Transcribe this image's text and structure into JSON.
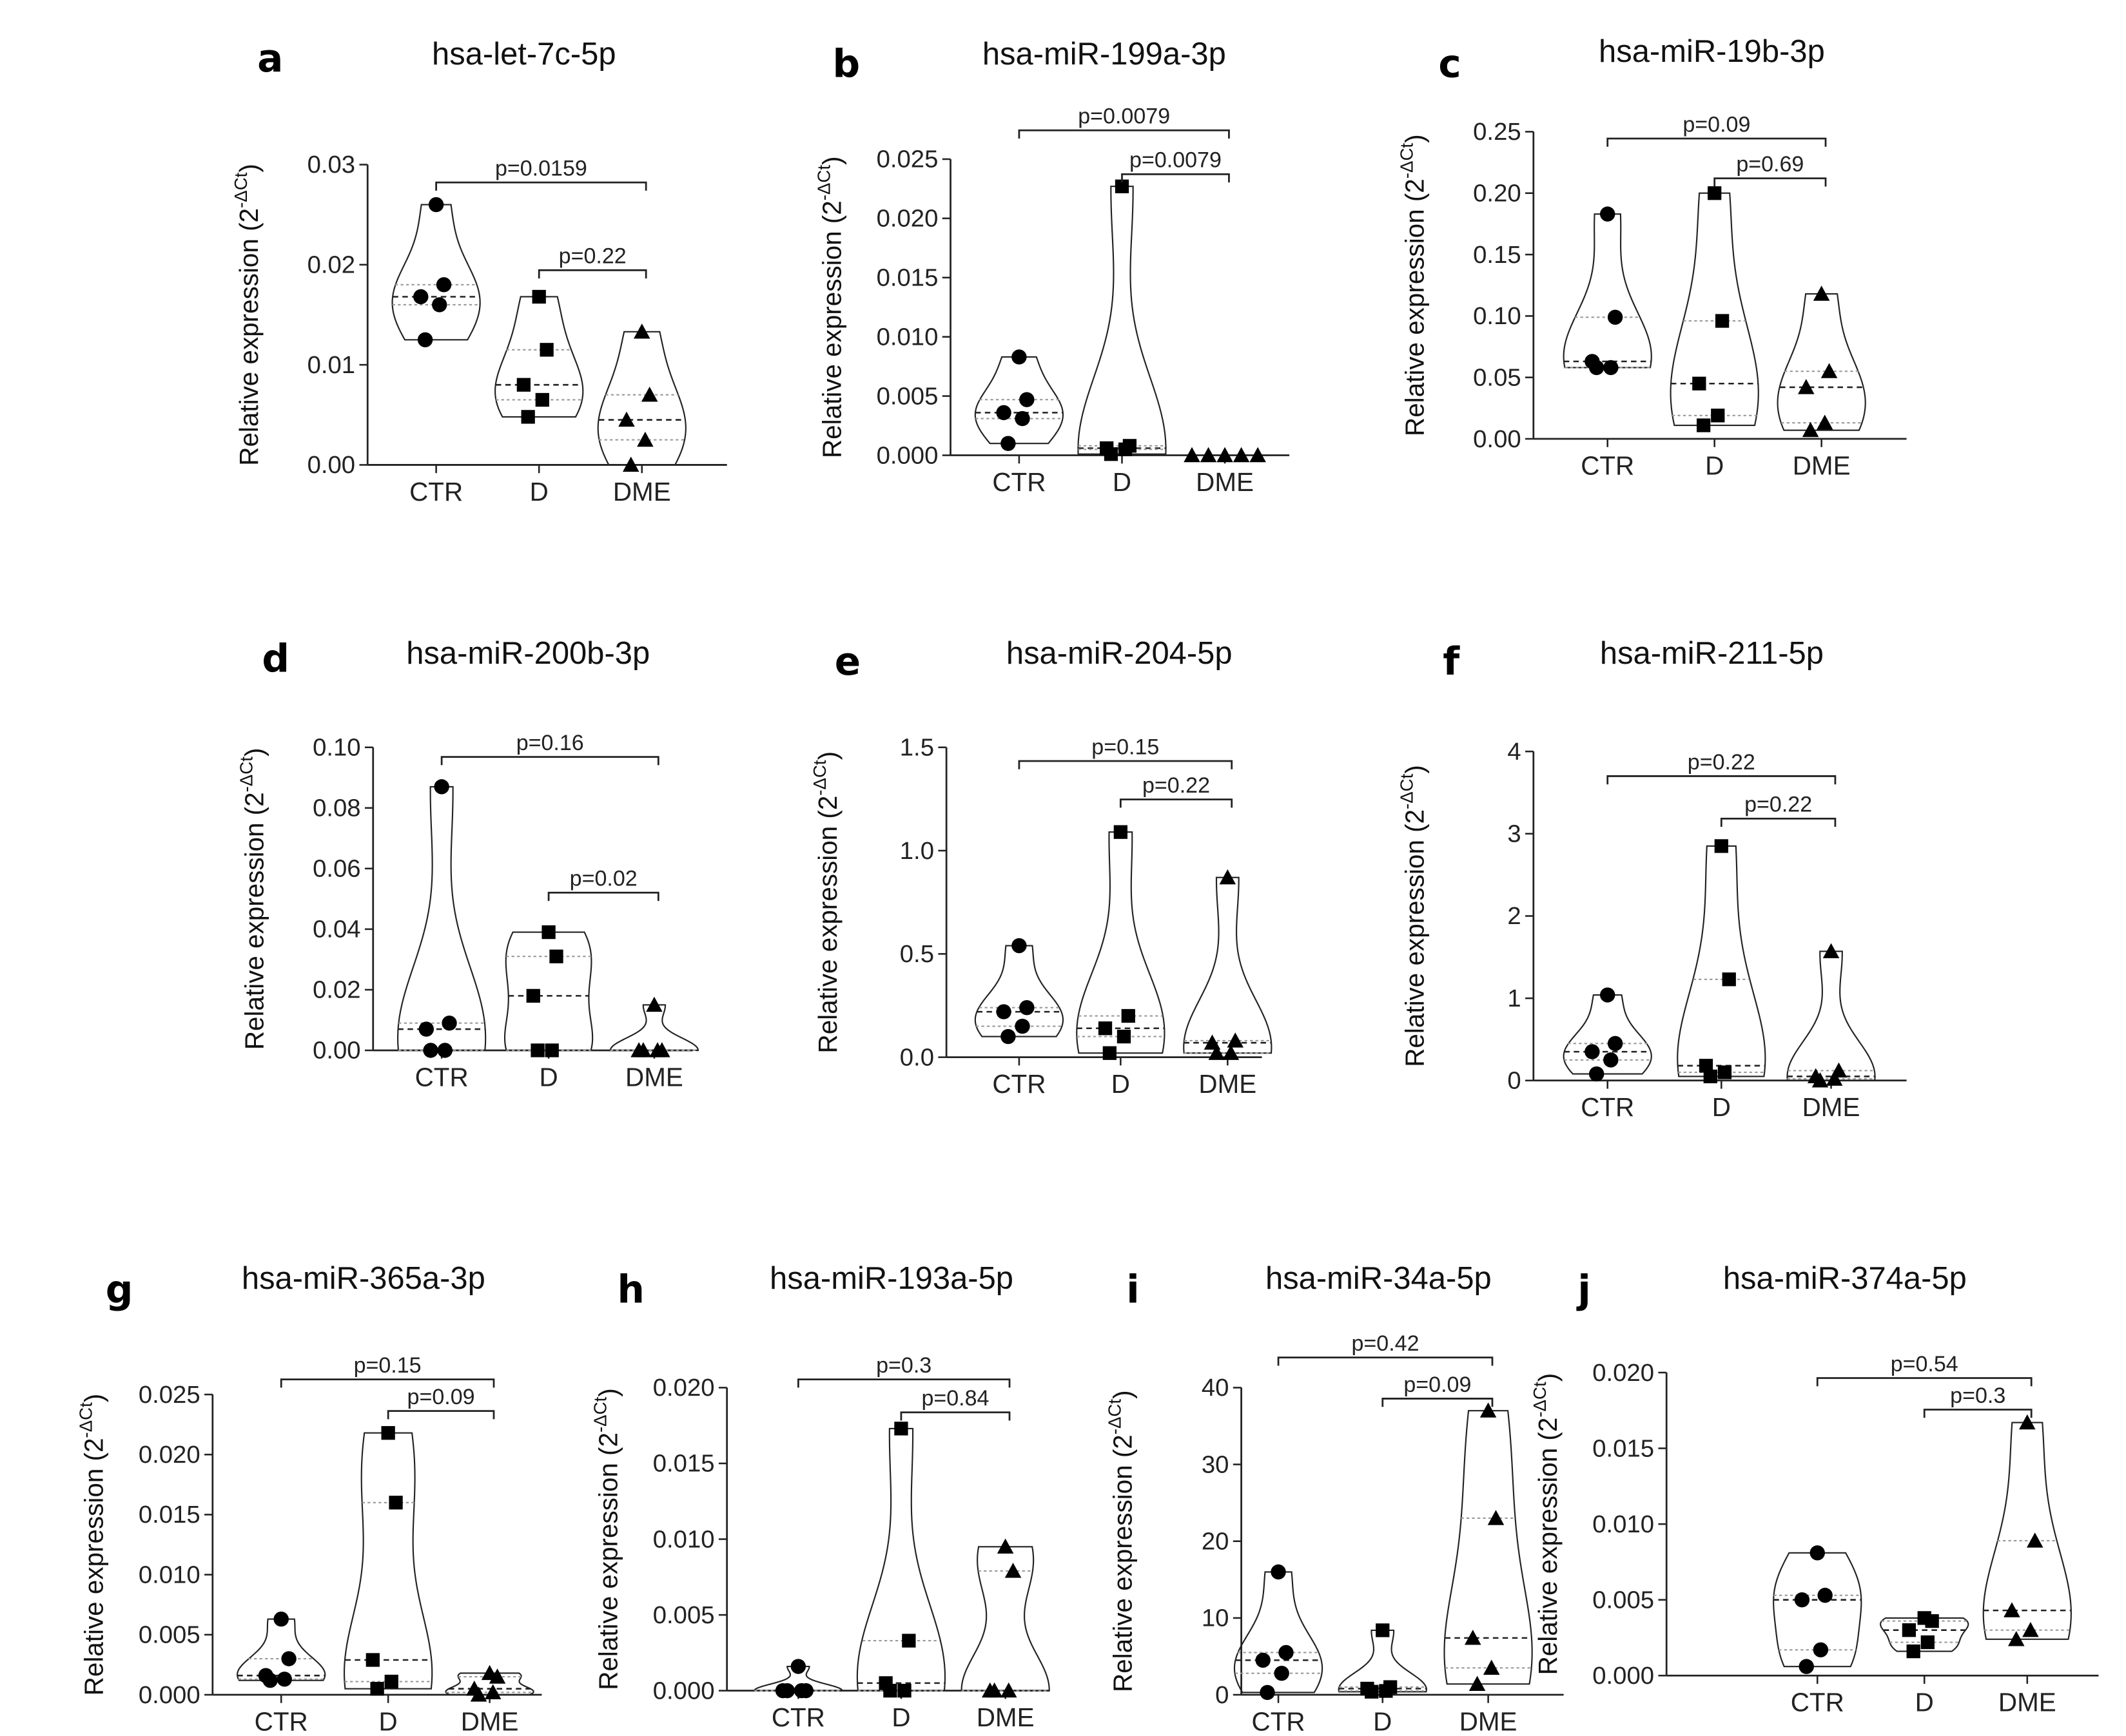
{
  "chart_data": [
    {
      "letter": "a",
      "title": "hsa-let-7c-5p",
      "type": "violin",
      "ylabel": "Relative expression (2",
      "ylabel_sup": "-ΔCt",
      "ylabel_end": ")",
      "ylim": [
        0,
        0.03
      ],
      "yticks": [
        "0.00",
        "0.01",
        "0.02",
        "0.03"
      ],
      "tick_values": [
        0,
        0.01,
        0.02,
        0.03
      ],
      "categories": [
        "CTR",
        "D",
        "DME"
      ],
      "series": [
        {
          "name": "CTR",
          "marker": "circle",
          "values": [
            0.026,
            0.018,
            0.0168,
            0.016,
            0.0125
          ]
        },
        {
          "name": "D",
          "marker": "square",
          "values": [
            0.0168,
            0.0115,
            0.008,
            0.0065,
            0.0048
          ]
        },
        {
          "name": "DME",
          "marker": "triangle",
          "values": [
            0.0133,
            0.007,
            0.0045,
            0.0025,
            0.0
          ]
        }
      ],
      "comparisons": [
        {
          "from": "CTR",
          "to": "DME",
          "label": "p=0.0159"
        },
        {
          "from": "D",
          "to": "DME",
          "label": "p=0.22"
        }
      ]
    },
    {
      "letter": "b",
      "title": "hsa-miR-199a-3p",
      "type": "violin",
      "ylabel": "Relative expression (2",
      "ylabel_sup": "-ΔCt",
      "ylabel_end": ")",
      "ylim": [
        0,
        0.025
      ],
      "yticks": [
        "0.000",
        "0.005",
        "0.010",
        "0.015",
        "0.020",
        "0.025"
      ],
      "tick_values": [
        0,
        0.005,
        0.01,
        0.015,
        0.02,
        0.025
      ],
      "categories": [
        "CTR",
        "D",
        "DME"
      ],
      "series": [
        {
          "name": "CTR",
          "marker": "circle",
          "values": [
            0.0083,
            0.0047,
            0.0036,
            0.0031,
            0.001
          ]
        },
        {
          "name": "D",
          "marker": "square",
          "values": [
            0.0227,
            0.0008,
            0.0006,
            0.0005,
            0.0001
          ]
        },
        {
          "name": "DME",
          "marker": "triangle",
          "values": [
            0,
            0,
            0,
            0,
            0
          ]
        }
      ],
      "comparisons": [
        {
          "from": "CTR",
          "to": "DME",
          "label": "p=0.0079"
        },
        {
          "from": "D",
          "to": "DME",
          "label": "p=0.0079"
        }
      ]
    },
    {
      "letter": "c",
      "title": "hsa-miR-19b-3p",
      "type": "violin",
      "ylabel": "Relative expression (2",
      "ylabel_sup": "-ΔCt",
      "ylabel_end": ")",
      "ylim": [
        0,
        0.25
      ],
      "yticks": [
        "0.00",
        "0.05",
        "0.10",
        "0.15",
        "0.20",
        "0.25"
      ],
      "tick_values": [
        0,
        0.05,
        0.1,
        0.15,
        0.2,
        0.25
      ],
      "categories": [
        "CTR",
        "D",
        "DME"
      ],
      "series": [
        {
          "name": "CTR",
          "marker": "circle",
          "values": [
            0.183,
            0.099,
            0.063,
            0.058,
            0.058
          ]
        },
        {
          "name": "D",
          "marker": "square",
          "values": [
            0.2,
            0.096,
            0.045,
            0.019,
            0.011
          ]
        },
        {
          "name": "DME",
          "marker": "triangle",
          "values": [
            0.118,
            0.055,
            0.042,
            0.013,
            0.007
          ]
        }
      ],
      "comparisons": [
        {
          "from": "CTR",
          "to": "DME",
          "label": "p=0.09"
        },
        {
          "from": "D",
          "to": "DME",
          "label": "p=0.69"
        }
      ]
    },
    {
      "letter": "d",
      "title": "hsa-miR-200b-3p",
      "type": "violin",
      "ylabel": "Relative expression (2",
      "ylabel_sup": "-ΔCt",
      "ylabel_end": ")",
      "ylim": [
        0,
        0.1
      ],
      "yticks": [
        "0.00",
        "0.02",
        "0.04",
        "0.06",
        "0.08",
        "0.10"
      ],
      "tick_values": [
        0,
        0.02,
        0.04,
        0.06,
        0.08,
        0.1
      ],
      "categories": [
        "CTR",
        "D",
        "DME"
      ],
      "series": [
        {
          "name": "CTR",
          "marker": "circle",
          "values": [
            0.087,
            0.009,
            0.007,
            0.0,
            0.0
          ]
        },
        {
          "name": "D",
          "marker": "square",
          "values": [
            0.039,
            0.031,
            0.018,
            0.0,
            0.0
          ]
        },
        {
          "name": "DME",
          "marker": "triangle",
          "values": [
            0.015,
            0,
            0,
            0,
            0
          ]
        }
      ],
      "comparisons": [
        {
          "from": "CTR",
          "to": "DME",
          "label": "p=0.16"
        },
        {
          "from": "D",
          "to": "DME",
          "label": "p=0.02"
        }
      ]
    },
    {
      "letter": "e",
      "title": "hsa-miR-204-5p",
      "type": "violin",
      "ylabel": "Relative expression (2",
      "ylabel_sup": "-ΔCt",
      "ylabel_end": ")",
      "ylim": [
        0,
        1.5
      ],
      "yticks": [
        "0.0",
        "0.5",
        "1.0",
        "1.5"
      ],
      "tick_values": [
        0,
        0.5,
        1.0,
        1.5
      ],
      "categories": [
        "CTR",
        "D",
        "DME"
      ],
      "series": [
        {
          "name": "CTR",
          "marker": "circle",
          "values": [
            0.54,
            0.24,
            0.22,
            0.15,
            0.1
          ]
        },
        {
          "name": "D",
          "marker": "square",
          "values": [
            1.09,
            0.2,
            0.14,
            0.1,
            0.02
          ]
        },
        {
          "name": "DME",
          "marker": "triangle",
          "values": [
            0.87,
            0.08,
            0.07,
            0.02,
            0.02
          ]
        }
      ],
      "comparisons": [
        {
          "from": "CTR",
          "to": "DME",
          "label": "p=0.15"
        },
        {
          "from": "D",
          "to": "DME",
          "label": "p=0.22"
        }
      ]
    },
    {
      "letter": "f",
      "title": "hsa-miR-211-5p",
      "type": "violin",
      "ylabel": "Relative expression (2",
      "ylabel_sup": "-ΔCt",
      "ylabel_end": ")",
      "ylim": [
        0,
        4
      ],
      "yticks": [
        "0",
        "1",
        "2",
        "3",
        "4"
      ],
      "tick_values": [
        0,
        1,
        2,
        3,
        4
      ],
      "categories": [
        "CTR",
        "D",
        "DME"
      ],
      "series": [
        {
          "name": "CTR",
          "marker": "circle",
          "values": [
            1.04,
            0.45,
            0.35,
            0.25,
            0.08
          ]
        },
        {
          "name": "D",
          "marker": "square",
          "values": [
            2.85,
            1.23,
            0.18,
            0.1,
            0.05
          ]
        },
        {
          "name": "DME",
          "marker": "triangle",
          "values": [
            1.57,
            0.12,
            0.05,
            0.02,
            0.0
          ]
        }
      ],
      "comparisons": [
        {
          "from": "CTR",
          "to": "DME",
          "label": "p=0.22"
        },
        {
          "from": "D",
          "to": "DME",
          "label": "p=0.22"
        }
      ]
    },
    {
      "letter": "g",
      "title": "hsa-miR-365a-3p",
      "type": "violin",
      "ylabel": "Relative expression (2",
      "ylabel_sup": "-ΔCt",
      "ylabel_end": ")",
      "ylim": [
        0,
        0.025
      ],
      "yticks": [
        "0.000",
        "0.005",
        "0.010",
        "0.015",
        "0.020",
        "0.025"
      ],
      "tick_values": [
        0,
        0.005,
        0.01,
        0.015,
        0.02,
        0.025
      ],
      "categories": [
        "CTR",
        "D",
        "DME"
      ],
      "series": [
        {
          "name": "CTR",
          "marker": "circle",
          "values": [
            0.0063,
            0.003,
            0.0016,
            0.0013,
            0.0012
          ]
        },
        {
          "name": "D",
          "marker": "square",
          "values": [
            0.0218,
            0.016,
            0.0029,
            0.0011,
            0.0005
          ]
        },
        {
          "name": "DME",
          "marker": "triangle",
          "values": [
            0.0018,
            0.0015,
            0.0005,
            0.0002,
            0.0
          ]
        }
      ],
      "comparisons": [
        {
          "from": "CTR",
          "to": "DME",
          "label": "p=0.15"
        },
        {
          "from": "D",
          "to": "DME",
          "label": "p=0.09"
        }
      ]
    },
    {
      "letter": "h",
      "title": "hsa-miR-193a-5p",
      "type": "violin",
      "ylabel": "Relative expression (2",
      "ylabel_sup": "-ΔCt",
      "ylabel_end": ")",
      "ylim": [
        0,
        0.02
      ],
      "yticks": [
        "0.000",
        "0.005",
        "0.010",
        "0.015",
        "0.020"
      ],
      "tick_values": [
        0,
        0.005,
        0.01,
        0.015,
        0.02
      ],
      "categories": [
        "CTR",
        "D",
        "DME"
      ],
      "series": [
        {
          "name": "CTR",
          "marker": "circle",
          "values": [
            0.0016,
            0,
            0,
            0,
            0
          ]
        },
        {
          "name": "D",
          "marker": "square",
          "values": [
            0.0173,
            0.0033,
            0.0005,
            0,
            0
          ]
        },
        {
          "name": "DME",
          "marker": "triangle",
          "values": [
            0.0095,
            0.0079,
            0,
            0,
            0
          ]
        }
      ],
      "comparisons": [
        {
          "from": "CTR",
          "to": "DME",
          "label": "p=0.3"
        },
        {
          "from": "D",
          "to": "DME",
          "label": "p=0.84"
        }
      ]
    },
    {
      "letter": "i",
      "title": "hsa-miR-34a-5p",
      "type": "violin",
      "ylabel": "Relative expression (2",
      "ylabel_sup": "-ΔCt",
      "ylabel_end": ")",
      "ylim": [
        0,
        40
      ],
      "yticks": [
        "0",
        "10",
        "20",
        "30",
        "40"
      ],
      "tick_values": [
        0,
        10,
        20,
        30,
        40
      ],
      "categories": [
        "CTR",
        "D",
        "DME"
      ],
      "series": [
        {
          "name": "CTR",
          "marker": "circle",
          "values": [
            16,
            5.5,
            4.5,
            2.8,
            0.3
          ]
        },
        {
          "name": "D",
          "marker": "square",
          "values": [
            8.4,
            1.0,
            0.8,
            0.5,
            0.4
          ]
        },
        {
          "name": "DME",
          "marker": "triangle",
          "values": [
            37,
            23,
            7.4,
            3.5,
            1.4
          ]
        }
      ],
      "comparisons": [
        {
          "from": "CTR",
          "to": "DME",
          "label": "p=0.42"
        },
        {
          "from": "D",
          "to": "DME",
          "label": "p=0.09"
        }
      ]
    },
    {
      "letter": "j",
      "title": "hsa-miR-374a-5p",
      "type": "violin",
      "ylabel": "Relative expression (2",
      "ylabel_sup": "-ΔCt",
      "ylabel_end": ")",
      "ylim": [
        0,
        0.02
      ],
      "yticks": [
        "0.000",
        "0.005",
        "0.010",
        "0.015",
        "0.020"
      ],
      "tick_values": [
        0,
        0.005,
        0.01,
        0.015,
        0.02
      ],
      "categories": [
        "CTR",
        "D",
        "DME"
      ],
      "series": [
        {
          "name": "CTR",
          "marker": "circle",
          "values": [
            0.0081,
            0.0053,
            0.005,
            0.0017,
            0.0006
          ]
        },
        {
          "name": "D",
          "marker": "square",
          "values": [
            0.0038,
            0.0036,
            0.003,
            0.0022,
            0.0016
          ]
        },
        {
          "name": "DME",
          "marker": "triangle",
          "values": [
            0.0167,
            0.0089,
            0.0043,
            0.003,
            0.0024
          ]
        }
      ],
      "comparisons": [
        {
          "from": "CTR",
          "to": "DME",
          "label": "p=0.54"
        },
        {
          "from": "D",
          "to": "DME",
          "label": "p=0.3"
        }
      ]
    }
  ]
}
